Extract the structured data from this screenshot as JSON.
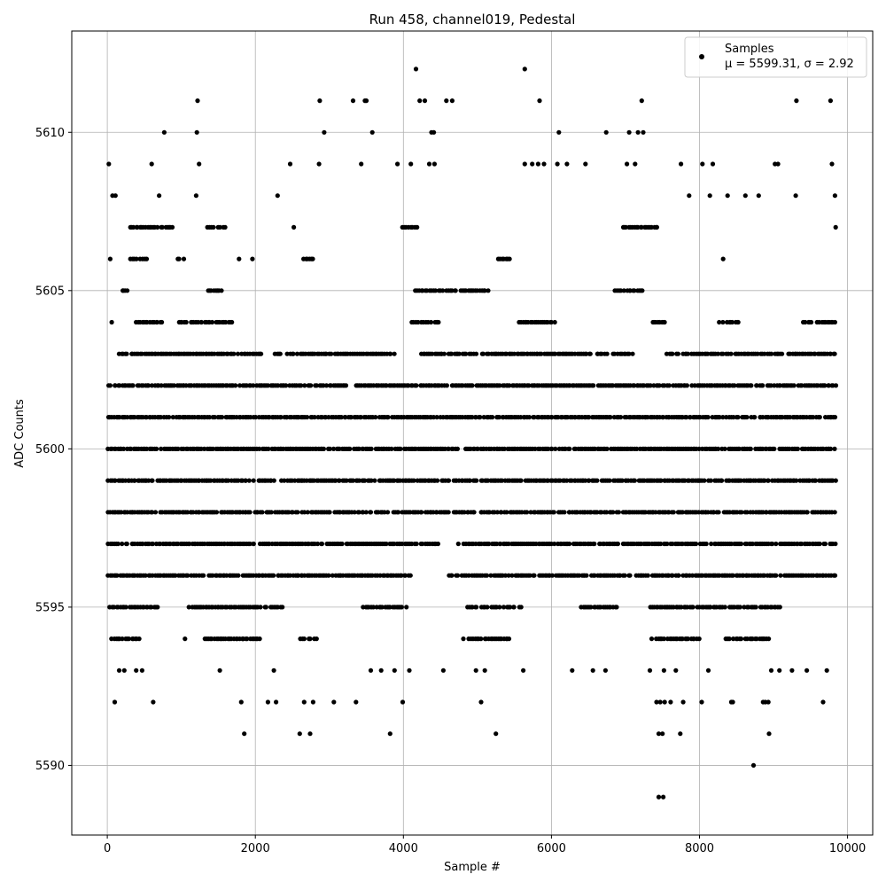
{
  "chart_data": {
    "type": "scatter",
    "title": "Run 458, channel019, Pedestal",
    "xlabel": "Sample #",
    "ylabel": "ADC Counts",
    "xlim": [
      -480,
      10340
    ],
    "ylim": [
      5587.8,
      5613.2
    ],
    "xticks": [
      0,
      2000,
      4000,
      6000,
      8000,
      10000
    ],
    "xtick_labels": [
      "0",
      "2000",
      "4000",
      "6000",
      "8000",
      "10000"
    ],
    "yticks": [
      5590,
      5595,
      5600,
      5605,
      5610
    ],
    "ytick_labels": [
      "5590",
      "5595",
      "5600",
      "5605",
      "5610"
    ],
    "grid": true,
    "legend": {
      "placement": "top-right",
      "entries": [
        {
          "label": "Samples",
          "stat_line": "μ = 5599.31, σ = 2.92",
          "marker": "dot"
        }
      ]
    },
    "marker_color": "#000000",
    "series": [
      {
        "name": "Samples",
        "note_levels": "x ranges per ADC level where samples are densely present",
        "levels": [
          {
            "y": 5600,
            "x_ranges": [
              [
                0,
                9850
              ]
            ]
          },
          {
            "y": 5599,
            "x_ranges": [
              [
                0,
                9850
              ]
            ]
          },
          {
            "y": 5598,
            "x_ranges": [
              [
                0,
                9850
              ]
            ]
          },
          {
            "y": 5601,
            "x_ranges": [
              [
                0,
                9850
              ]
            ]
          },
          {
            "y": 5602,
            "x_ranges": [
              [
                0,
                3250
              ],
              [
                3350,
                9850
              ]
            ]
          },
          {
            "y": 5597,
            "x_ranges": [
              [
                0,
                4480
              ],
              [
                4730,
                9850
              ]
            ]
          },
          {
            "y": 5596,
            "x_ranges": [
              [
                0,
                4100
              ],
              [
                4600,
                9850
              ]
            ]
          },
          {
            "y": 5603,
            "x_ranges": [
              [
                150,
                2100
              ],
              [
                2250,
                3900
              ],
              [
                4200,
                7100
              ],
              [
                7550,
                9850
              ]
            ]
          },
          {
            "y": 5595,
            "x_ranges": [
              [
                30,
                700
              ],
              [
                1100,
                2400
              ],
              [
                3450,
                4050
              ],
              [
                4850,
                5600
              ],
              [
                6400,
                6900
              ],
              [
                7300,
                9100
              ]
            ]
          },
          {
            "y": 5604,
            "x_ranges": [
              [
                350,
                750
              ],
              [
                950,
                1700
              ],
              [
                4100,
                4500
              ],
              [
                5550,
                6050
              ],
              [
                7350,
                7550
              ],
              [
                8250,
                8550
              ],
              [
                9400,
                9850
              ]
            ]
          },
          {
            "y": 5594,
            "x_ranges": [
              [
                50,
                450
              ],
              [
                1300,
                2100
              ],
              [
                2600,
                2850
              ],
              [
                4800,
                5450
              ],
              [
                7350,
                8000
              ],
              [
                8350,
                8950
              ]
            ]
          },
          {
            "y": 5605,
            "x_ranges": [
              [
                200,
                300
              ],
              [
                1350,
                1550
              ],
              [
                4150,
                5150
              ],
              [
                6850,
                7250
              ]
            ]
          },
          {
            "y": 5606,
            "x_ranges": [
              [
                300,
                550
              ],
              [
                940,
                1050
              ],
              [
                2650,
                2800
              ],
              [
                5250,
                5450
              ]
            ]
          },
          {
            "y": 5607,
            "x_ranges": [
              [
                300,
                900
              ],
              [
                1350,
                1600
              ],
              [
                3950,
                4200
              ],
              [
                6950,
                7450
              ]
            ]
          }
        ],
        "points": [
          [
            20,
            5609
          ],
          [
            40,
            5606
          ],
          [
            60,
            5604
          ],
          [
            70,
            5608
          ],
          [
            110,
            5608
          ],
          [
            100,
            5592
          ],
          [
            160,
            5593
          ],
          [
            230,
            5593
          ],
          [
            390,
            5593
          ],
          [
            470,
            5593
          ],
          [
            210,
            5605
          ],
          [
            620,
            5592
          ],
          [
            600,
            5609
          ],
          [
            770,
            5610
          ],
          [
            700,
            5608
          ],
          [
            1220,
            5611
          ],
          [
            1210,
            5610
          ],
          [
            1240,
            5609
          ],
          [
            1200,
            5608
          ],
          [
            1050,
            5594
          ],
          [
            1180,
            5595
          ],
          [
            1520,
            5593
          ],
          [
            1780,
            5606
          ],
          [
            1810,
            5592
          ],
          [
            1850,
            5591
          ],
          [
            1830,
            5594
          ],
          [
            1960,
            5606
          ],
          [
            2170,
            5592
          ],
          [
            2250,
            5593
          ],
          [
            2280,
            5592
          ],
          [
            2300,
            5608
          ],
          [
            2470,
            5609
          ],
          [
            2520,
            5607
          ],
          [
            2600,
            5591
          ],
          [
            2660,
            5592
          ],
          [
            2740,
            5591
          ],
          [
            2780,
            5592
          ],
          [
            2870,
            5611
          ],
          [
            2860,
            5609
          ],
          [
            2930,
            5610
          ],
          [
            3060,
            5592
          ],
          [
            3320,
            5611
          ],
          [
            3360,
            5592
          ],
          [
            3430,
            5609
          ],
          [
            3480,
            5611
          ],
          [
            3500,
            5611
          ],
          [
            3580,
            5610
          ],
          [
            3560,
            5593
          ],
          [
            3700,
            5593
          ],
          [
            3820,
            5591
          ],
          [
            3880,
            5593
          ],
          [
            3920,
            5609
          ],
          [
            3990,
            5592
          ],
          [
            4080,
            5593
          ],
          [
            4100,
            5609
          ],
          [
            4170,
            5612
          ],
          [
            4220,
            5611
          ],
          [
            4290,
            5611
          ],
          [
            4350,
            5609
          ],
          [
            4380,
            5610
          ],
          [
            4410,
            5610
          ],
          [
            4420,
            5609
          ],
          [
            4450,
            5604
          ],
          [
            4540,
            5593
          ],
          [
            4580,
            5611
          ],
          [
            4660,
            5611
          ],
          [
            4980,
            5593
          ],
          [
            5050,
            5592
          ],
          [
            5100,
            5593
          ],
          [
            5250,
            5591
          ],
          [
            5620,
            5593
          ],
          [
            5640,
            5612
          ],
          [
            5640,
            5609
          ],
          [
            5740,
            5609
          ],
          [
            5840,
            5611
          ],
          [
            5820,
            5609
          ],
          [
            5900,
            5609
          ],
          [
            6080,
            5609
          ],
          [
            6100,
            5610
          ],
          [
            6210,
            5609
          ],
          [
            6280,
            5593
          ],
          [
            6460,
            5609
          ],
          [
            6560,
            5593
          ],
          [
            6730,
            5593
          ],
          [
            6740,
            5610
          ],
          [
            7020,
            5609
          ],
          [
            7050,
            5610
          ],
          [
            7130,
            5609
          ],
          [
            7170,
            5610
          ],
          [
            7220,
            5611
          ],
          [
            7240,
            5610
          ],
          [
            7330,
            5593
          ],
          [
            7420,
            5592
          ],
          [
            7450,
            5589
          ],
          [
            7450,
            5591
          ],
          [
            7470,
            5592
          ],
          [
            7500,
            5591
          ],
          [
            7510,
            5589
          ],
          [
            7520,
            5593
          ],
          [
            7530,
            5592
          ],
          [
            7610,
            5592
          ],
          [
            7680,
            5593
          ],
          [
            7740,
            5591
          ],
          [
            7750,
            5609
          ],
          [
            7780,
            5592
          ],
          [
            7860,
            5608
          ],
          [
            8030,
            5592
          ],
          [
            8040,
            5609
          ],
          [
            8140,
            5608
          ],
          [
            8180,
            5609
          ],
          [
            8120,
            5593
          ],
          [
            8320,
            5606
          ],
          [
            8380,
            5608
          ],
          [
            8430,
            5592
          ],
          [
            8450,
            5592
          ],
          [
            8620,
            5608
          ],
          [
            8730,
            5590
          ],
          [
            8800,
            5608
          ],
          [
            8860,
            5592
          ],
          [
            8890,
            5592
          ],
          [
            8930,
            5592
          ],
          [
            8940,
            5591
          ],
          [
            8970,
            5593
          ],
          [
            9020,
            5609
          ],
          [
            9060,
            5609
          ],
          [
            9080,
            5593
          ],
          [
            9250,
            5593
          ],
          [
            9310,
            5611
          ],
          [
            9300,
            5608
          ],
          [
            9450,
            5593
          ],
          [
            9670,
            5592
          ],
          [
            9720,
            5593
          ],
          [
            9770,
            5611
          ],
          [
            9790,
            5609
          ],
          [
            9830,
            5608
          ],
          [
            9840,
            5607
          ]
        ]
      }
    ]
  }
}
